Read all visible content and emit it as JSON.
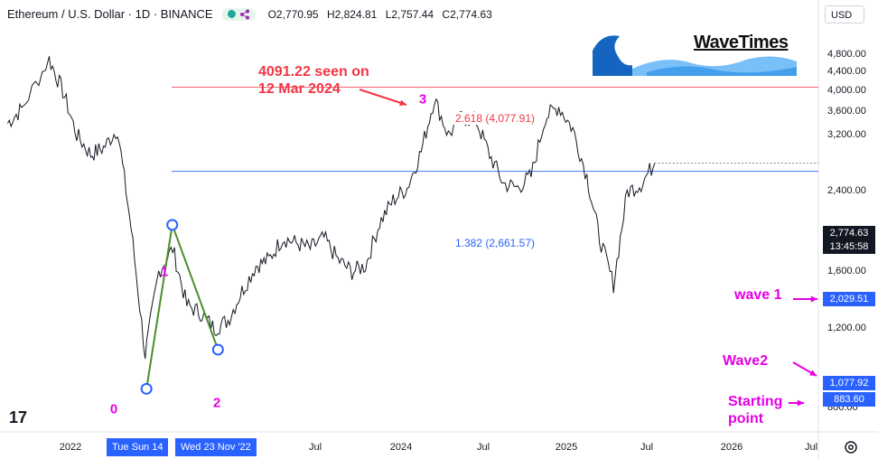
{
  "header": {
    "title": "Ethereum / U.S. Dollar · 1D · BINANCE",
    "ohlc": [
      "O2,770.95",
      "H2,824.81",
      "L2,757.44",
      "C2,774.63"
    ],
    "indicator_icon": "share-icon"
  },
  "currency_button": "USD",
  "price_tags": {
    "last_price": "2,774.63",
    "countdown": "13:45:58",
    "wave1": "2,029.51",
    "wave2": "1,077.92",
    "start": "883.60"
  },
  "fib_levels": [
    {
      "label": "2.618 (4,077.91)",
      "value": 4077.91,
      "color": "#f23645"
    },
    {
      "label": "1.382 (2,661.57)",
      "value": 2661.57,
      "color": "#2962ff"
    }
  ],
  "annotations": {
    "seen_note": "4091.22 seen on\n12 Mar 2024",
    "wave1_note": "wave 1",
    "wave2_note": "Wave2",
    "start_note": "Starting\npoint"
  },
  "wave_labels": [
    "0",
    "1",
    "2",
    "3"
  ],
  "x_axis": {
    "labels": [
      "2022",
      "Jul",
      "2024",
      "Jul",
      "2025",
      "Jul",
      "2026",
      "Jul"
    ],
    "highlight_left": "Tue  Sun 14",
    "highlight_right": "Wed 23 Nov '22"
  },
  "logo": {
    "text": "WaveTimes"
  },
  "watermark": "17",
  "colors": {
    "accent_red": "#f23645",
    "accent_blue": "#2962ff",
    "magenta": "#e400e4",
    "wave_green": "#4a8f2a"
  },
  "chart_data": {
    "type": "line",
    "symbol": "ETH/USD",
    "timeframe": "1D",
    "y_scale": "log",
    "ylim": [
      760,
      5300
    ],
    "y_ticks": [
      "4,800.00",
      "4,400.00",
      "4,000.00",
      "3,600.00",
      "3,200.00",
      "2,400.00",
      "1,600.00",
      "1,200.00",
      "800.00"
    ],
    "y_tick_values": [
      4800,
      4400,
      4000,
      3600,
      3200,
      2400,
      1600,
      1200,
      800
    ],
    "x": [
      "2021-08",
      "2021-09",
      "2021-11",
      "2021-12",
      "2022-01",
      "2022-02",
      "2022-03",
      "2022-04",
      "2022-05",
      "2022-06",
      "2022-07",
      "2022-08",
      "2022-09",
      "2022-10",
      "2022-11",
      "2022-12",
      "2023-01",
      "2023-02",
      "2023-03",
      "2023-04",
      "2023-05",
      "2023-06",
      "2023-07",
      "2023-08",
      "2023-09",
      "2023-10",
      "2023-11",
      "2023-12",
      "2024-01",
      "2024-02",
      "2024-03",
      "2024-04",
      "2024-05",
      "2024-06",
      "2024-07",
      "2024-08",
      "2024-09",
      "2024-10",
      "2024-11",
      "2024-12",
      "2025-01",
      "2025-02",
      "2025-03",
      "2025-04",
      "2025-05",
      "2025-06",
      "2025-07"
    ],
    "values": [
      3400,
      3650,
      4700,
      4000,
      3200,
      2900,
      3000,
      3300,
      2000,
      1050,
      1600,
      1800,
      1350,
      1300,
      1200,
      1250,
      1450,
      1650,
      1700,
      1900,
      1850,
      1800,
      1900,
      1700,
      1600,
      1650,
      2050,
      2300,
      2450,
      2950,
      3850,
      3200,
      3500,
      3450,
      2900,
      2500,
      2450,
      2600,
      3500,
      3700,
      3300,
      2600,
      1900,
      1500,
      2400,
      2500,
      2774.63
    ],
    "wave_points": [
      {
        "label": "0",
        "date": "2022-06-18",
        "value": 883.6
      },
      {
        "label": "1",
        "date": "2022-08-14",
        "value": 2029.51
      },
      {
        "label": "2",
        "date": "2022-11-23",
        "value": 1077.92
      }
    ],
    "horizontal_lines": [
      4077.91,
      2661.57
    ]
  }
}
